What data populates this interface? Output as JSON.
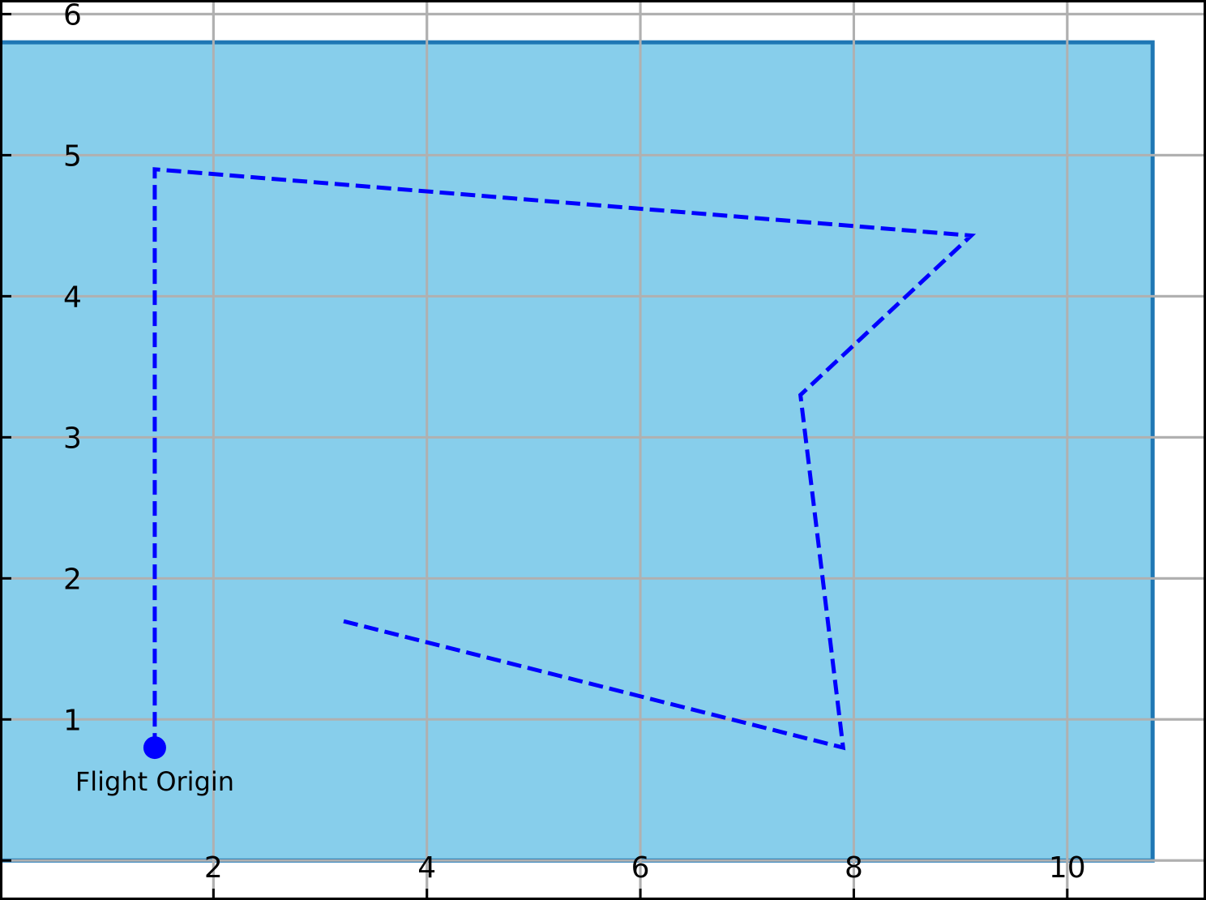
{
  "chart_data": {
    "type": "line",
    "title": "",
    "xlabel": "",
    "ylabel": "",
    "xlim": [
      0.0,
      11.3
    ],
    "ylim": [
      -0.28,
      6.1
    ],
    "grid": true,
    "x_ticks": [
      2,
      4,
      6,
      8,
      10
    ],
    "x_tick_labels": [
      "2",
      "4",
      "6",
      "8",
      "10"
    ],
    "y_ticks": [
      0,
      1,
      2,
      3,
      4,
      5,
      6
    ],
    "y_tick_labels": [
      "",
      "1",
      "2",
      "3",
      "4",
      "5",
      "6"
    ],
    "region": {
      "x": [
        0.0,
        10.8
      ],
      "y": [
        0.0,
        5.8
      ],
      "fill": "#87ceeb",
      "edge": "#1f77b4"
    },
    "series": [
      {
        "style": "dashed",
        "color": "#0000ff",
        "x": [
          1.45,
          1.45,
          9.1,
          7.5,
          7.9,
          3.2
        ],
        "y": [
          0.8,
          4.9,
          4.43,
          3.3,
          0.8,
          1.7
        ]
      }
    ],
    "annotations": [
      {
        "text": "Flight Origin",
        "x": 1.45,
        "y": 0.8,
        "marker_color": "#0000ff"
      }
    ]
  }
}
